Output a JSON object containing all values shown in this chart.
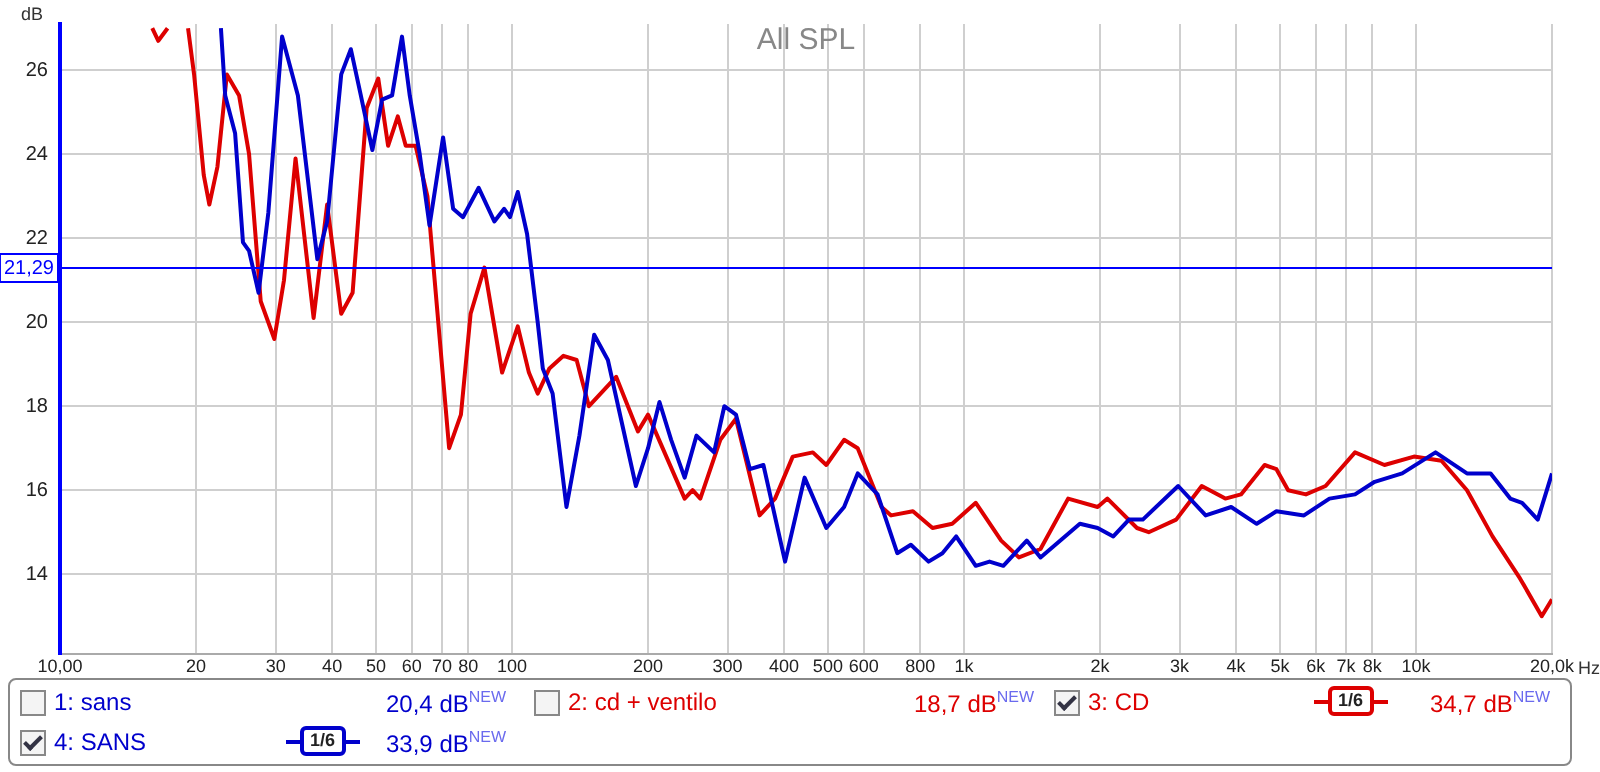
{
  "chart_data": {
    "type": "line",
    "title": "All SPL",
    "xlabel": "Hz",
    "ylabel": "dB",
    "log": "x",
    "grid": true,
    "legend": "bottom",
    "marker": "none",
    "line_style": "solid",
    "xlim": [
      10,
      20000
    ],
    "ylim": [
      12.1,
      27.1
    ],
    "xticks": [
      {
        "value": 10,
        "label": "10,00"
      },
      20,
      30,
      40,
      50,
      60,
      70,
      80,
      100,
      200,
      300,
      400,
      500,
      600,
      800,
      {
        "value": 1000,
        "label": "1k"
      },
      {
        "value": 2000,
        "label": "2k"
      },
      {
        "value": 3000,
        "label": "3k"
      },
      {
        "value": 4000,
        "label": "4k"
      },
      {
        "value": 5000,
        "label": "5k"
      },
      {
        "value": 6000,
        "label": "6k"
      },
      {
        "value": 7000,
        "label": "7k"
      },
      {
        "value": 8000,
        "label": "8k"
      },
      {
        "value": 10000,
        "label": "10k"
      },
      {
        "value": 20000,
        "label": "20,0k"
      }
    ],
    "yticks": [
      14,
      16,
      18,
      20,
      22,
      24,
      26
    ],
    "ref_lines": [
      {
        "axis": "y",
        "value": 21.29,
        "label": "21,29",
        "color": "#0000ff"
      }
    ],
    "annotations": [
      "1: sans",
      "20,4 dB",
      "2: cd + ventilo",
      "18,7 dB",
      "34,7 dB",
      "33,9 dB",
      "NEW",
      "1/6"
    ],
    "series": [
      {
        "name": "3: CD",
        "color": "#dd0000",
        "x": [
          16.0,
          16.5,
          17.3,
          18.4,
          19.2,
          19.8,
          20.8,
          21.4,
          22.3,
          23.4,
          24.9,
          26.2,
          27.8,
          29.8,
          31.3,
          33.2,
          36.4,
          39.0,
          41.9,
          44.4,
          47.7,
          50.6,
          53.2,
          55.9,
          58.2,
          61.2,
          65.0,
          72.6,
          77.1,
          81.0,
          86.9,
          95.1,
          103,
          109,
          114,
          121,
          130,
          139,
          148,
          170,
          190,
          200,
          241,
          251,
          261,
          289,
          313,
          353,
          382,
          418,
          463,
          496,
          543,
          582,
          657,
          690,
          771,
          852,
          942,
          1062,
          1209,
          1323,
          1477,
          1700,
          1976,
          2077,
          2414,
          2563,
          2948,
          3358,
          3787,
          4102,
          4626,
          4913,
          5215,
          5709,
          6310,
          7332,
          8518,
          9902,
          11390,
          12970,
          14770,
          16990,
          18980,
          20000
        ],
        "values": [
          27.0,
          26.7,
          27.0,
          null,
          27.0,
          25.9,
          23.5,
          22.8,
          23.7,
          25.9,
          25.4,
          24.0,
          20.5,
          19.6,
          21.0,
          23.9,
          20.1,
          22.8,
          20.2,
          20.7,
          25.1,
          25.8,
          24.2,
          24.9,
          24.2,
          24.2,
          23.0,
          17.0,
          17.8,
          20.2,
          21.3,
          18.8,
          19.9,
          18.8,
          18.3,
          18.9,
          19.2,
          19.1,
          18.0,
          18.7,
          17.4,
          17.8,
          15.8,
          16.0,
          15.8,
          17.2,
          17.7,
          15.4,
          15.8,
          16.8,
          16.9,
          16.6,
          17.2,
          17.0,
          15.6,
          15.4,
          15.5,
          15.1,
          15.2,
          15.7,
          14.8,
          14.4,
          14.6,
          15.8,
          15.6,
          15.8,
          15.1,
          15.0,
          15.3,
          16.1,
          15.8,
          15.9,
          16.6,
          16.5,
          16.0,
          15.9,
          16.1,
          16.9,
          16.6,
          16.8,
          16.7,
          16.0,
          14.9,
          13.9,
          13.0,
          13.4
        ]
      },
      {
        "name": "4: SANS",
        "color": "#0000cc",
        "x": [
          22.7,
          23.2,
          24.4,
          25.4,
          26.2,
          27.5,
          28.9,
          31.0,
          33.6,
          37.1,
          39.0,
          41.9,
          44.0,
          46.3,
          49.1,
          51.6,
          54.3,
          57.1,
          59.4,
          62.5,
          65.7,
          70.4,
          74.1,
          77.9,
          84.4,
          91.4,
          96.1,
          99,
          103,
          108,
          114,
          117,
          123,
          132,
          141,
          152,
          163,
          188,
          200,
          212,
          225,
          241,
          256,
          280,
          295,
          313,
          336,
          360,
          402,
          444,
          496,
          543,
          582,
          644,
          712,
          763,
          835,
          896,
          961,
          1062,
          1139,
          1222,
          1377,
          1477,
          1805,
          1976,
          2140,
          2318,
          2487,
          2978,
          3426,
          3901,
          4443,
          4913,
          5652,
          6437,
          7332,
          8104,
          9324,
          11050,
          12970,
          14630,
          16170,
          17170,
          18600,
          20000
        ],
        "values": [
          27.0,
          25.4,
          24.5,
          21.9,
          21.7,
          20.7,
          22.6,
          26.8,
          25.4,
          21.5,
          22.4,
          25.9,
          26.5,
          25.4,
          24.1,
          25.3,
          25.4,
          26.8,
          25.4,
          24.0,
          22.3,
          24.4,
          22.7,
          22.5,
          23.2,
          22.4,
          22.7,
          22.5,
          23.1,
          22.1,
          20.0,
          18.9,
          18.3,
          15.6,
          17.3,
          19.7,
          19.1,
          16.1,
          17.0,
          18.1,
          17.2,
          16.3,
          17.3,
          16.9,
          18.0,
          17.8,
          16.5,
          16.6,
          14.3,
          16.3,
          15.1,
          15.6,
          16.4,
          15.9,
          14.5,
          14.7,
          14.3,
          14.5,
          14.9,
          14.2,
          14.3,
          14.2,
          14.8,
          14.4,
          15.2,
          15.1,
          14.9,
          15.3,
          15.3,
          16.1,
          15.4,
          15.6,
          15.2,
          15.5,
          15.4,
          15.8,
          15.9,
          16.2,
          16.4,
          16.9,
          16.4,
          16.4,
          15.8,
          15.7,
          15.3,
          16.4
        ]
      }
    ]
  }
}
